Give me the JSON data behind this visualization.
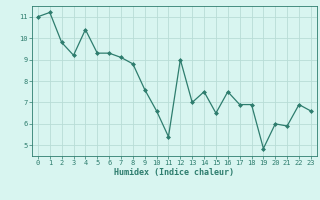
{
  "x": [
    0,
    1,
    2,
    3,
    4,
    5,
    6,
    7,
    8,
    9,
    10,
    11,
    12,
    13,
    14,
    15,
    16,
    17,
    18,
    19,
    20,
    21,
    22,
    23
  ],
  "y": [
    11.0,
    11.2,
    9.8,
    9.2,
    10.4,
    9.3,
    9.3,
    9.1,
    8.8,
    7.6,
    6.6,
    5.4,
    9.0,
    7.0,
    7.5,
    6.5,
    7.5,
    6.9,
    6.9,
    4.85,
    6.0,
    5.9,
    6.9,
    6.6
  ],
  "xlim": [
    -0.5,
    23.5
  ],
  "ylim": [
    4.5,
    11.5
  ],
  "yticks": [
    5,
    6,
    7,
    8,
    9,
    10,
    11
  ],
  "xticks": [
    0,
    1,
    2,
    3,
    4,
    5,
    6,
    7,
    8,
    9,
    10,
    11,
    12,
    13,
    14,
    15,
    16,
    17,
    18,
    19,
    20,
    21,
    22,
    23
  ],
  "xlabel": "Humidex (Indice chaleur)",
  "line_color": "#2e7d6e",
  "marker": "D",
  "marker_size": 2.0,
  "bg_color": "#d8f5f0",
  "grid_color": "#b8ddd6",
  "axis_color": "#2e7d6e",
  "tick_color": "#2e7d6e",
  "label_color": "#2e7d6e",
  "font_family": "monospace",
  "tick_fontsize": 5.0,
  "xlabel_fontsize": 6.0
}
